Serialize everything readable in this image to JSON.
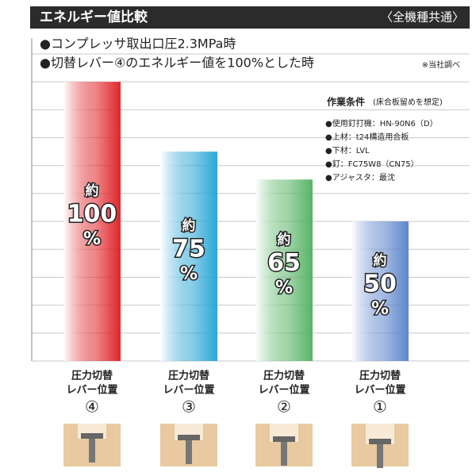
{
  "chart_data": {
    "type": "bar",
    "title": "エネルギー値比較",
    "subtitle": "〈全機種共通〉",
    "notes": [
      "●コンプレッサ取出口圧2.3MPa時",
      "●切替レバー④のエネルギー値を100%とした時"
    ],
    "source": "※当社調べ",
    "conditions": {
      "title": "作業条件",
      "subtitle": "(床合板留めを想定)",
      "items": [
        "●使用釘打機：HN-90N6（D）",
        "●上材：t24構造用合板",
        "●下材：LVL",
        "●釘：FC75W8（CN75）",
        "●アジャスタ：最沈"
      ]
    },
    "category_label_lines": [
      "圧力切替",
      "レバー位置"
    ],
    "categories": [
      "④",
      "③",
      "②",
      "①"
    ],
    "values": [
      100,
      75,
      65,
      50
    ],
    "value_prefix": "約",
    "value_suffix": "%",
    "colors": [
      "#e0262a",
      "#2aa6d6",
      "#58b466",
      "#5f86cc"
    ],
    "ylim": [
      0,
      110
    ],
    "yticks": [
      0,
      10,
      20,
      30,
      40,
      50,
      60,
      70,
      80,
      90,
      100,
      110
    ],
    "grid": true
  }
}
